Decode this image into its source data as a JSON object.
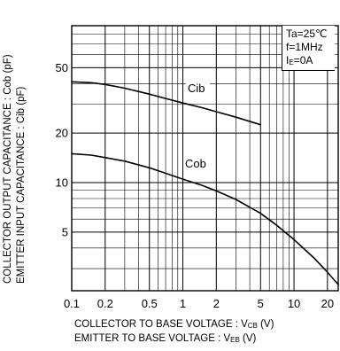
{
  "chart_data": {
    "type": "line",
    "x_scale": "log",
    "y_scale": "log",
    "xlim": [
      0.1,
      25
    ],
    "ylim": [
      2.2,
      90
    ],
    "grid": true,
    "x_tick_labels": [
      {
        "value": 0.1,
        "label": "0.1"
      },
      {
        "value": 0.2,
        "label": "0.2"
      },
      {
        "value": 0.5,
        "label": "0.5"
      },
      {
        "value": 1,
        "label": "1"
      },
      {
        "value": 2,
        "label": "2"
      },
      {
        "value": 5,
        "label": "5"
      },
      {
        "value": 10,
        "label": "10"
      },
      {
        "value": 20,
        "label": "20"
      }
    ],
    "y_tick_labels": [
      {
        "value": 5,
        "label": "5"
      },
      {
        "value": 10,
        "label": "10"
      },
      {
        "value": 20,
        "label": "20"
      },
      {
        "value": 50,
        "label": "50"
      }
    ],
    "xlabel": {
      "line1": {
        "main": "COLLECTOR TO BASE VOLTAGE : V",
        "sub": "CB",
        "unit": " (V)"
      },
      "line2": {
        "main": "EMITTER TO BASE VOLTAGE : V",
        "sub": "EB",
        "unit": " (V)"
      }
    },
    "ylabel": {
      "line1": "COLLECTOR OUTPUT CAPACITANCE : Cob (pF)",
      "line2": "EMITTER INPUT CAPACITANCE : Cib (pF)"
    },
    "conditions": {
      "line1": "Ta=25℃",
      "line2": "f=1MHz",
      "line3": {
        "main": "I",
        "sub": "E",
        "rest": "=0A"
      }
    },
    "series": [
      {
        "name": "Cib",
        "x": [
          0.1,
          0.15,
          0.2,
          0.3,
          0.5,
          0.7,
          1,
          1.5,
          2,
          3,
          5
        ],
        "y": [
          41,
          40.5,
          39.5,
          37.5,
          34.5,
          32.5,
          30.5,
          28.5,
          27,
          25,
          22.5
        ]
      },
      {
        "name": "Cob",
        "x": [
          0.1,
          0.15,
          0.2,
          0.3,
          0.5,
          0.7,
          1,
          1.5,
          2,
          3,
          5,
          7,
          10,
          15,
          20,
          25
        ],
        "y": [
          15,
          14.7,
          14.2,
          13.5,
          12.3,
          11.4,
          10.5,
          9.6,
          8.9,
          7.9,
          6.5,
          5.5,
          4.5,
          3.5,
          2.85,
          2.4
        ]
      }
    ]
  }
}
